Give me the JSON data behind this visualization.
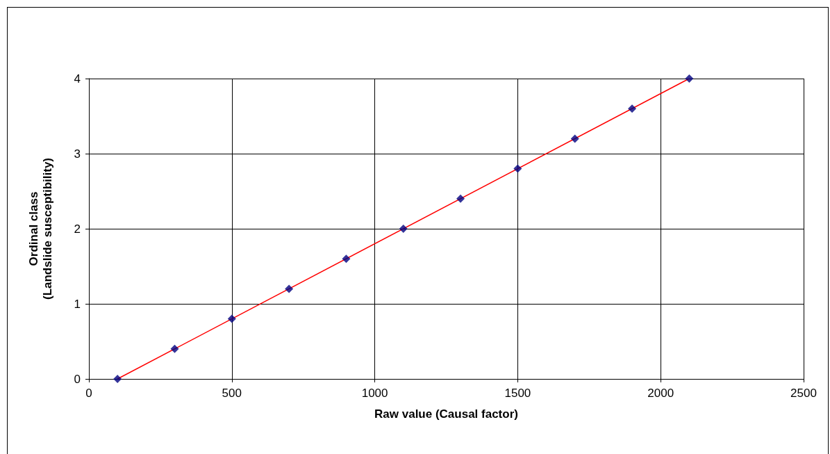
{
  "chart_data": {
    "type": "scatter",
    "xlabel": "Raw value (Causal factor)",
    "ylabel": "Ordinal class\n(Landslide susceptibility)",
    "xlim": [
      0,
      2500
    ],
    "xticks": [
      0,
      500,
      1000,
      1500,
      2000,
      2500
    ],
    "ylim": [
      0,
      4
    ],
    "yticks": [
      0,
      1,
      2,
      3,
      4
    ],
    "grid": true,
    "series": [
      {
        "type": "line",
        "color": "#ff0000",
        "marker": "none",
        "x": [
          100,
          2100
        ],
        "values": [
          0,
          4
        ]
      },
      {
        "color": "#000080",
        "marker": "diamond",
        "x": [
          100,
          300,
          500,
          700,
          900,
          1100,
          1300,
          1500,
          1700,
          1900,
          2100
        ],
        "values": [
          0,
          0.4,
          0.8,
          1.2,
          1.6,
          2,
          2.4,
          2.8,
          3.2,
          3.6,
          4
        ]
      }
    ]
  }
}
